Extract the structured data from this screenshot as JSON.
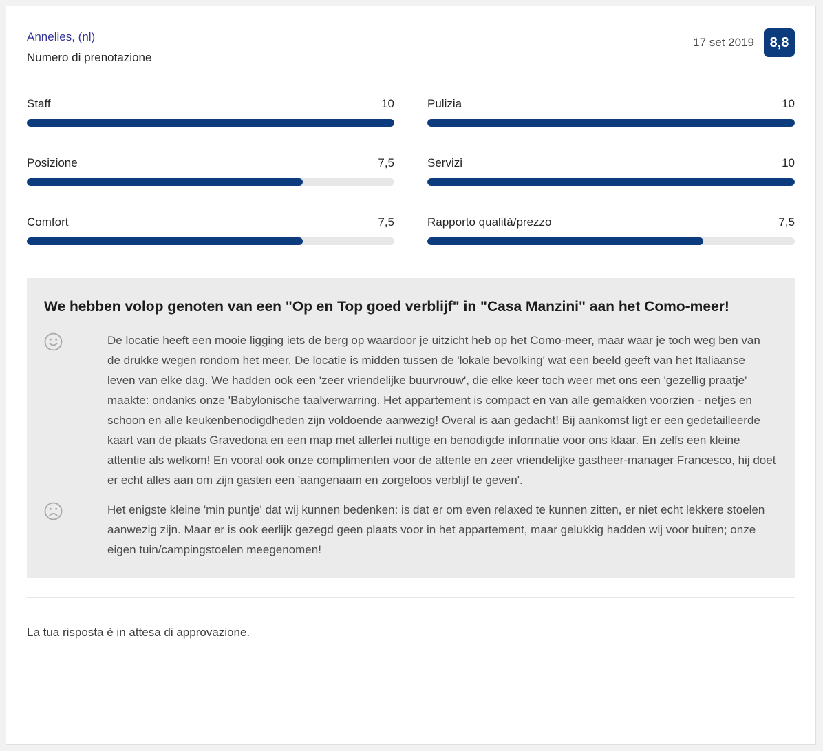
{
  "header": {
    "guest_name": "Annelies, (nl)",
    "booking_label": "Numero di prenotazione",
    "date": "17 set 2019",
    "score": "8,8"
  },
  "chart_data": {
    "type": "bar",
    "categories": [
      "Staff",
      "Pulizia",
      "Posizione",
      "Servizi",
      "Comfort",
      "Rapporto qualità/prezzo"
    ],
    "values": [
      10,
      10,
      7.5,
      10,
      7.5,
      7.5
    ],
    "max": 10
  },
  "scores": {
    "items": [
      {
        "label": "Staff",
        "value": "10",
        "percent": 100
      },
      {
        "label": "Pulizia",
        "value": "10",
        "percent": 100
      },
      {
        "label": "Posizione",
        "value": "7,5",
        "percent": 75
      },
      {
        "label": "Servizi",
        "value": "10",
        "percent": 100
      },
      {
        "label": "Comfort",
        "value": "7,5",
        "percent": 75
      },
      {
        "label": "Rapporto qualità/prezzo",
        "value": "7,5",
        "percent": 75
      }
    ]
  },
  "review": {
    "title": "We hebben volop genoten van een \"Op en Top goed verblijf\" in \"Casa Manzini\" aan het Como-meer!",
    "positive_icon": "happy-face",
    "positive_text": "De locatie heeft een mooie ligging iets de berg op waardoor je uitzicht heb op het Como-meer, maar waar je toch weg ben van de drukke wegen rondom het meer. De locatie is midden tussen de 'lokale bevolking' wat een beeld geeft van het Italiaanse leven van elke dag. We hadden ook een 'zeer vriendelijke buurvrouw', die elke keer toch weer met ons een 'gezellig praatje' maakte: ondanks onze 'Babylonische taalverwarring. Het appartement is compact en van alle gemakken voorzien - netjes en schoon en alle keukenbenodigdheden zijn voldoende aanwezig! Overal is aan gedacht! Bij aankomst ligt er een gedetailleerde kaart van de plaats Gravedona en een map met allerlei nuttige en benodigde informatie voor ons klaar. En zelfs een kleine attentie als welkom! En vooral ook onze complimenten voor de attente en zeer vriendelijke gastheer-manager Francesco, hij doet er echt alles aan om zijn gasten een 'aangenaam en zorgeloos verblijf te geven'.",
    "negative_icon": "sad-face",
    "negative_text": "Het enigste kleine 'min puntje' dat wij kunnen bedenken: is dat er om even relaxed te kunnen zitten, er niet echt lekkere stoelen aanwezig zijn. Maar er is ook eerlijk gezegd geen plaats voor in het appartement, maar gelukkig hadden wij voor buiten; onze eigen tuin/campingstoelen meegenomen!"
  },
  "footer": {
    "status": "La tua risposta è in attesa di approvazione."
  },
  "colors": {
    "accent": "#0c3b7e",
    "bar_track": "#e7e7e7",
    "review_box": "#ebebeb",
    "card_bg": "#ffffff",
    "page_bg": "#f2f2f2"
  }
}
